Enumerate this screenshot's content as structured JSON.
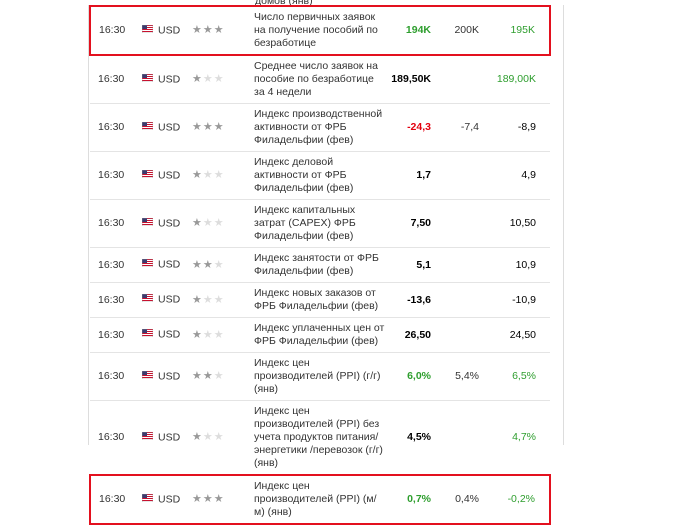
{
  "top_fragment": "домов (янв)",
  "rows": [
    {
      "time": "16:30",
      "currency": "USD",
      "importance": 3,
      "event": "Число первичных заявок на получение пособий по безработице",
      "actual": "194K",
      "forecast": "200K",
      "previous": "195K",
      "actual_color": "#2e9e2e",
      "previous_color": "#2e9e2e",
      "highlight": true
    },
    {
      "time": "16:30",
      "currency": "USD",
      "importance": 1,
      "event": "Среднее число заявок на пособие по безработице за 4 недели",
      "actual": "189,50K",
      "forecast": null,
      "previous": "189,00K",
      "actual_color": "#000000",
      "previous_color": "#2e9e2e",
      "highlight": false
    },
    {
      "time": "16:30",
      "currency": "USD",
      "importance": 3,
      "event": "Индекс производственной активности от ФРБ Филадельфии (фев)",
      "actual": "-24,3",
      "forecast": "-7,4",
      "previous": "-8,9",
      "actual_color": "#e3000f",
      "previous_color": "#000000",
      "highlight": false
    },
    {
      "time": "16:30",
      "currency": "USD",
      "importance": 1,
      "event": "Индекс деловой активности от ФРБ Филадельфии (фев)",
      "actual": "1,7",
      "forecast": null,
      "previous": "4,9",
      "actual_color": "#000000",
      "previous_color": "#000000",
      "highlight": false
    },
    {
      "time": "16:30",
      "currency": "USD",
      "importance": 1,
      "event": "Индекс капитальных затрат (CAPEX) ФРБ Филадельфии (фев)",
      "actual": "7,50",
      "forecast": null,
      "previous": "10,50",
      "actual_color": "#000000",
      "previous_color": "#000000",
      "highlight": false
    },
    {
      "time": "16:30",
      "currency": "USD",
      "importance": 2,
      "event": "Индекс занятости от ФРБ Филадельфии (фев)",
      "actual": "5,1",
      "forecast": null,
      "previous": "10,9",
      "actual_color": "#000000",
      "previous_color": "#000000",
      "highlight": false
    },
    {
      "time": "16:30",
      "currency": "USD",
      "importance": 1,
      "event": "Индекс новых заказов от ФРБ Филадельфии (фев)",
      "actual": "-13,6",
      "forecast": null,
      "previous": "-10,9",
      "actual_color": "#000000",
      "previous_color": "#000000",
      "highlight": false
    },
    {
      "time": "16:30",
      "currency": "USD",
      "importance": 1,
      "event": "Индекс уплаченных цен от ФРБ Филадельфии (фев)",
      "actual": "26,50",
      "forecast": null,
      "previous": "24,50",
      "actual_color": "#000000",
      "previous_color": "#000000",
      "highlight": false
    },
    {
      "time": "16:30",
      "currency": "USD",
      "importance": 2,
      "event": "Индекс цен производителей (PPI) (г/г) (янв)",
      "actual": "6,0%",
      "forecast": "5,4%",
      "previous": "6,5%",
      "actual_color": "#2e9e2e",
      "previous_color": "#2e9e2e",
      "highlight": false
    },
    {
      "time": "16:30",
      "currency": "USD",
      "importance": 1,
      "event": "Индекс цен производителей (PPI) без учета продуктов питания/энергетики /перевозок (г/г) (янв)",
      "actual": "4,5%",
      "forecast": null,
      "previous": "4,7%",
      "actual_color": "#000000",
      "previous_color": "#2e9e2e",
      "highlight": false
    },
    {
      "time": "16:30",
      "currency": "USD",
      "importance": 3,
      "event": "Индекс цен производителей (PPI) (м/м) (янв)",
      "actual": "0,7%",
      "forecast": "0,4%",
      "previous": "-0,2%",
      "actual_color": "#2e9e2e",
      "previous_color": "#2e9e2e",
      "highlight": true
    }
  ]
}
